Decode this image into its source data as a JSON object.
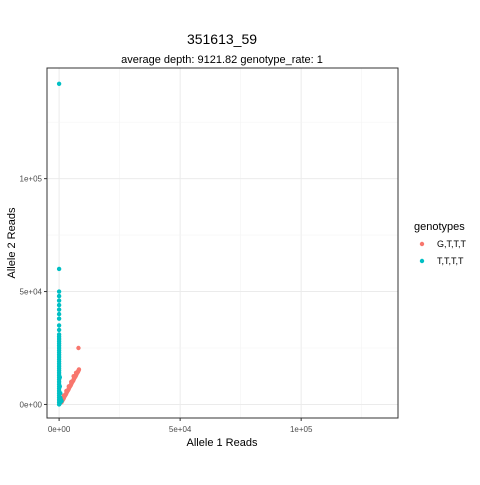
{
  "chart_data": {
    "type": "scatter",
    "title": "351613_59",
    "subtitle": "average depth:  9121.82  genotype_rate:  1",
    "xlabel": "Allele 1 Reads",
    "ylabel": "Allele 2 Reads",
    "xlim": [
      -5000,
      140000
    ],
    "ylim": [
      -6000,
      149000
    ],
    "x_ticks": [
      {
        "value": 0,
        "label": "0e+00"
      },
      {
        "value": 50000,
        "label": "5e+04"
      },
      {
        "value": 100000,
        "label": "1e+05"
      }
    ],
    "y_ticks": [
      {
        "value": 0,
        "label": "0e+00"
      },
      {
        "value": 50000,
        "label": "5e+04"
      },
      {
        "value": 100000,
        "label": "1e+05"
      }
    ],
    "grid": true,
    "legend": {
      "title": "genotypes",
      "position": "right",
      "entries": [
        {
          "label": "G,T,T,T",
          "color": "#F8766D"
        },
        {
          "label": "T,T,T,T",
          "color": "#00BFC4"
        }
      ]
    },
    "series": [
      {
        "name": "G,T,T,T",
        "color": "#F8766D",
        "points": [
          [
            1000,
            1000
          ],
          [
            1200,
            1500
          ],
          [
            1500,
            2000
          ],
          [
            1800,
            2500
          ],
          [
            2000,
            3000
          ],
          [
            2200,
            3500
          ],
          [
            2500,
            4000
          ],
          [
            2800,
            4500
          ],
          [
            3000,
            5000
          ],
          [
            3200,
            5500
          ],
          [
            3500,
            6000
          ],
          [
            3800,
            6500
          ],
          [
            4000,
            7000
          ],
          [
            4200,
            7500
          ],
          [
            4500,
            8000
          ],
          [
            4800,
            8500
          ],
          [
            5000,
            9000
          ],
          [
            5200,
            9500
          ],
          [
            5500,
            10000
          ],
          [
            5800,
            10500
          ],
          [
            6000,
            11000
          ],
          [
            6200,
            11500
          ],
          [
            6500,
            12000
          ],
          [
            6800,
            12500
          ],
          [
            7000,
            13000
          ],
          [
            7200,
            13500
          ],
          [
            7500,
            14000
          ],
          [
            7800,
            14500
          ],
          [
            8000,
            15000
          ],
          [
            8200,
            15500
          ],
          [
            7000,
            14000
          ],
          [
            6000,
            12500
          ],
          [
            5000,
            10000
          ],
          [
            4000,
            8000
          ],
          [
            3000,
            6000
          ],
          [
            2000,
            4000
          ],
          [
            1500,
            3000
          ],
          [
            8000,
            25000
          ]
        ]
      },
      {
        "name": "T,T,T,T",
        "color": "#00BFC4",
        "points": [
          [
            0,
            142000
          ],
          [
            0,
            60000
          ],
          [
            0,
            50000
          ],
          [
            0,
            48000
          ],
          [
            0,
            46000
          ],
          [
            0,
            44000
          ],
          [
            0,
            42000
          ],
          [
            0,
            40000
          ],
          [
            0,
            38000
          ],
          [
            0,
            35000
          ],
          [
            0,
            33000
          ],
          [
            0,
            31000
          ],
          [
            0,
            30000
          ],
          [
            0,
            29000
          ],
          [
            0,
            28000
          ],
          [
            0,
            27000
          ],
          [
            0,
            26000
          ],
          [
            0,
            25000
          ],
          [
            0,
            24000
          ],
          [
            0,
            23000
          ],
          [
            0,
            22000
          ],
          [
            0,
            21000
          ],
          [
            0,
            20000
          ],
          [
            0,
            19000
          ],
          [
            0,
            18000
          ],
          [
            0,
            17000
          ],
          [
            0,
            16000
          ],
          [
            0,
            15000
          ],
          [
            0,
            14000
          ],
          [
            0,
            13000
          ],
          [
            0,
            12000
          ],
          [
            0,
            11000
          ],
          [
            0,
            10000
          ],
          [
            0,
            9000
          ],
          [
            0,
            8000
          ],
          [
            0,
            7000
          ],
          [
            0,
            6000
          ],
          [
            0,
            5000
          ],
          [
            0,
            4000
          ],
          [
            0,
            3000
          ],
          [
            0,
            2000
          ],
          [
            0,
            1000
          ],
          [
            300,
            12000
          ],
          [
            300,
            8000
          ],
          [
            500,
            5000
          ],
          [
            500,
            3000
          ],
          [
            800,
            2000
          ],
          [
            1000,
            1500
          ],
          [
            300,
            500
          ],
          [
            0,
            0
          ]
        ]
      }
    ]
  }
}
